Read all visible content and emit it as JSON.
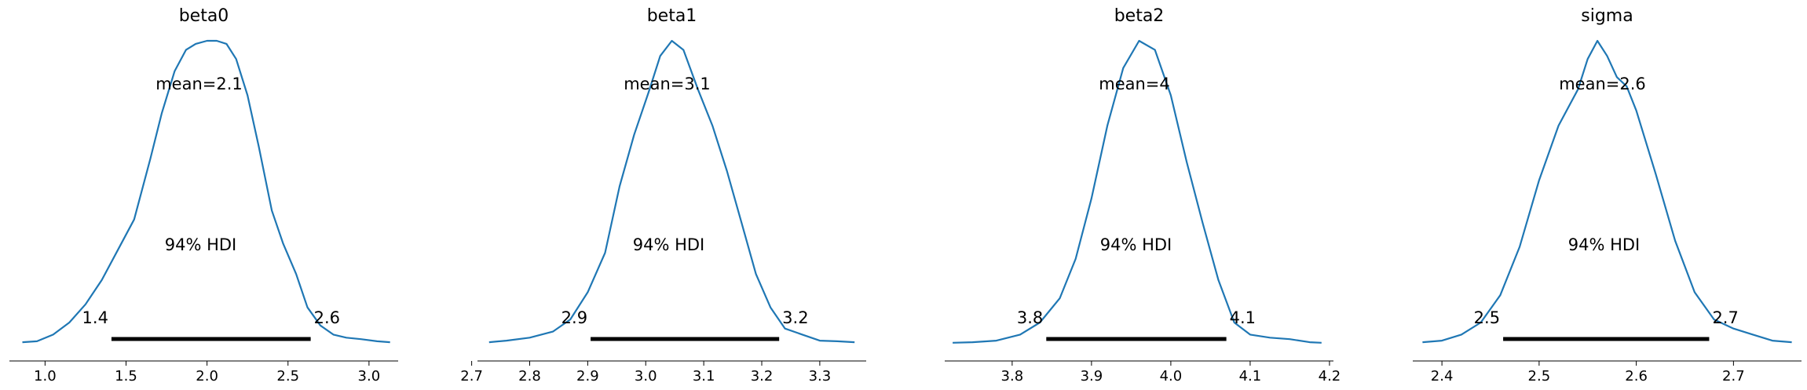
{
  "chart_data": [
    {
      "type": "area",
      "title": "beta0",
      "mean_label": "mean=2.1",
      "hdi_label": "94% HDI",
      "hdi": [
        1.41,
        2.64
      ],
      "hdi_labels": [
        "1.4",
        "2.6"
      ],
      "xlim": [
        0.78,
        3.18
      ],
      "ticks": [
        1.0,
        1.5,
        2.0,
        2.5,
        3.0
      ],
      "tick_labels": [
        "1.0",
        "1.5",
        "2.0",
        "2.5",
        "3.0"
      ],
      "density": {
        "x": [
          0.86,
          0.95,
          1.05,
          1.15,
          1.25,
          1.35,
          1.45,
          1.55,
          1.65,
          1.72,
          1.8,
          1.87,
          1.93,
          2.0,
          2.06,
          2.12,
          2.18,
          2.25,
          2.32,
          2.4,
          2.47,
          2.55,
          2.62,
          2.7,
          2.78,
          2.86,
          2.95,
          3.05,
          3.13
        ],
        "y": [
          0.005,
          0.008,
          0.03,
          0.07,
          0.13,
          0.21,
          0.31,
          0.41,
          0.61,
          0.76,
          0.9,
          0.97,
          0.99,
          1.0,
          1.0,
          0.99,
          0.94,
          0.82,
          0.65,
          0.44,
          0.33,
          0.23,
          0.12,
          0.06,
          0.03,
          0.02,
          0.015,
          0.008,
          0.005
        ]
      }
    },
    {
      "type": "area",
      "title": "beta1",
      "mean_label": "mean=3.1",
      "hdi_label": "94% HDI",
      "hdi": [
        2.905,
        3.23
      ],
      "hdi_labels": [
        "2.9",
        "3.2"
      ],
      "xlim": [
        2.71,
        3.38
      ],
      "ticks": [
        2.7,
        2.8,
        2.9,
        3.0,
        3.1,
        3.2,
        3.3
      ],
      "tick_labels": [
        "2.7",
        "2.8",
        "2.9",
        "3.0",
        "3.1",
        "3.2",
        "3.3"
      ],
      "density": {
        "x": [
          2.73,
          2.76,
          2.8,
          2.84,
          2.87,
          2.9,
          2.93,
          2.955,
          2.98,
          3.005,
          3.025,
          3.045,
          3.065,
          3.09,
          3.115,
          3.14,
          3.165,
          3.19,
          3.215,
          3.24,
          3.27,
          3.3,
          3.33,
          3.36
        ],
        "y": [
          0.005,
          0.01,
          0.02,
          0.04,
          0.08,
          0.17,
          0.3,
          0.52,
          0.69,
          0.83,
          0.95,
          1.0,
          0.97,
          0.84,
          0.72,
          0.57,
          0.4,
          0.23,
          0.12,
          0.05,
          0.03,
          0.01,
          0.008,
          0.005
        ]
      }
    },
    {
      "type": "area",
      "title": "beta2",
      "mean_label": "mean=4",
      "hdi_label": "94% HDI",
      "hdi": [
        3.843,
        4.07
      ],
      "hdi_labels": [
        "3.8",
        "4.1"
      ],
      "xlim": [
        3.715,
        4.205
      ],
      "ticks": [
        3.8,
        3.9,
        4.0,
        4.1,
        4.2
      ],
      "tick_labels": [
        "3.8",
        "3.9",
        "4.0",
        "4.1",
        "4.2"
      ],
      "density": {
        "x": [
          3.725,
          3.75,
          3.78,
          3.81,
          3.835,
          3.86,
          3.88,
          3.9,
          3.92,
          3.94,
          3.96,
          3.98,
          4.0,
          4.02,
          4.04,
          4.06,
          4.08,
          4.1,
          4.125,
          4.15,
          4.175,
          4.19
        ],
        "y": [
          0.003,
          0.005,
          0.01,
          0.03,
          0.07,
          0.15,
          0.28,
          0.48,
          0.72,
          0.91,
          1.0,
          0.97,
          0.82,
          0.6,
          0.4,
          0.21,
          0.07,
          0.03,
          0.02,
          0.015,
          0.005,
          0.003
        ]
      }
    },
    {
      "type": "area",
      "title": "sigma",
      "mean_label": "mean=2.6",
      "hdi_label": "94% HDI",
      "hdi": [
        2.463,
        2.675
      ],
      "hdi_labels": [
        "2.5",
        "2.7"
      ],
      "xlim": [
        2.37,
        2.77
      ],
      "ticks": [
        2.4,
        2.5,
        2.6,
        2.7
      ],
      "tick_labels": [
        "2.4",
        "2.5",
        "2.6",
        "2.7"
      ],
      "density": {
        "x": [
          2.38,
          2.4,
          2.42,
          2.44,
          2.46,
          2.48,
          2.5,
          2.52,
          2.54,
          2.55,
          2.56,
          2.57,
          2.58,
          2.59,
          2.6,
          2.62,
          2.64,
          2.66,
          2.68,
          2.7,
          2.72,
          2.74,
          2.76
        ],
        "y": [
          0.005,
          0.01,
          0.03,
          0.07,
          0.16,
          0.32,
          0.54,
          0.72,
          0.84,
          0.94,
          1.0,
          0.95,
          0.88,
          0.85,
          0.77,
          0.56,
          0.34,
          0.17,
          0.08,
          0.05,
          0.03,
          0.01,
          0.005
        ]
      }
    }
  ]
}
